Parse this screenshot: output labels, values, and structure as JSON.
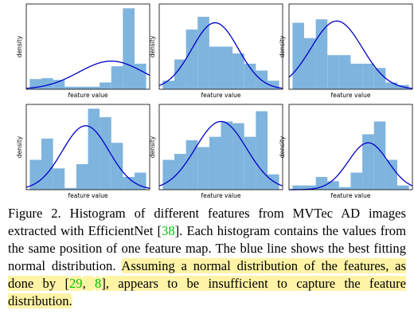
{
  "chart_data": [
    {
      "type": "histogram",
      "xlabel": "feature value",
      "ylabel": "density",
      "bins": [
        0,
        1,
        2,
        3,
        4,
        5,
        6,
        7,
        8,
        9,
        10
      ],
      "counts": [
        0.12,
        0.13,
        0.11,
        0.03,
        0.03,
        0.03,
        0.08,
        0.27,
        0.95,
        0.3
      ],
      "xlim": [
        -0.3,
        10.3
      ],
      "ylim": [
        0,
        1
      ],
      "color": "#7fb4de",
      "fit": {
        "mean": 7,
        "std": 2.8,
        "peak": 0.33,
        "color": "#0000c8"
      }
    },
    {
      "type": "histogram",
      "xlabel": "feature value",
      "ylabel": "density",
      "bins": [
        0,
        1,
        2,
        3,
        4,
        5,
        6,
        7,
        8,
        9,
        10
      ],
      "counts": [
        0.1,
        0.35,
        0.7,
        0.85,
        0.5,
        0.5,
        0.42,
        0.3,
        0.22,
        0.1
      ],
      "xlim": [
        -0.3,
        10.3
      ],
      "ylim": [
        0,
        1
      ],
      "color": "#7fb4de",
      "fit": {
        "mean": 4.5,
        "std": 2,
        "peak": 0.78,
        "color": "#0000c8"
      }
    },
    {
      "type": "histogram",
      "xlabel": "feature value",
      "ylabel": "density",
      "bins": [
        0,
        1,
        2,
        3,
        4,
        5,
        6,
        7,
        8,
        9,
        10
      ],
      "counts": [
        0.78,
        0.6,
        0.82,
        0.4,
        0.4,
        0.3,
        0.3,
        0.25,
        0.08,
        0.05
      ],
      "xlim": [
        -0.3,
        10.3
      ],
      "ylim": [
        0,
        1
      ],
      "color": "#7fb4de",
      "fit": {
        "mean": 3.8,
        "std": 2.2,
        "peak": 0.8,
        "color": "#0000c8"
      }
    },
    {
      "type": "histogram",
      "xlabel": "feature value",
      "ylabel": "density",
      "bins": [
        0,
        1,
        2,
        3,
        4,
        5,
        6,
        7,
        8,
        9,
        10
      ],
      "counts": [
        0.35,
        0.6,
        0.25,
        0.02,
        0.3,
        0.95,
        0.85,
        0.55,
        0.15,
        0.2
      ],
      "xlim": [
        -0.3,
        10.3
      ],
      "ylim": [
        0,
        1
      ],
      "color": "#7fb4de",
      "fit": {
        "mean": 4.8,
        "std": 2,
        "peak": 0.75,
        "color": "#0000c8"
      }
    },
    {
      "type": "histogram",
      "xlabel": "feature value",
      "ylabel": "density",
      "bins": [
        0,
        1,
        2,
        3,
        4,
        5,
        6,
        7,
        8,
        9,
        10
      ],
      "counts": [
        0.35,
        0.42,
        0.58,
        0.5,
        0.62,
        0.8,
        0.78,
        0.62,
        0.92,
        0.18
      ],
      "xlim": [
        -0.3,
        10.3
      ],
      "ylim": [
        0,
        1
      ],
      "color": "#7fb4de",
      "fit": {
        "mean": 5,
        "std": 2.2,
        "peak": 0.8,
        "color": "#0000c8"
      }
    },
    {
      "type": "histogram",
      "xlabel": "feature value",
      "ylabel": "density",
      "bins": [
        0,
        1,
        2,
        3,
        4,
        5,
        6,
        7,
        8,
        9,
        10
      ],
      "counts": [
        0.05,
        0.05,
        0.15,
        0.1,
        0.03,
        0.2,
        0.65,
        0.8,
        0.35,
        0.05
      ],
      "xlim": [
        -0.3,
        10.3
      ],
      "ylim": [
        0,
        1
      ],
      "color": "#7fb4de",
      "fit": {
        "mean": 6.5,
        "std": 1.7,
        "peak": 0.55,
        "color": "#0000c8"
      }
    }
  ],
  "caption": [
    {
      "text": "Figure 2. Histogram of different features from MVTec AD images extracted with EfficientNet ["
    },
    {
      "text": "38",
      "cite": true
    },
    {
      "text": "]. Each histogram contains the values from the same position of one feature map. The blue line shows the best fitting normal distribution. "
    },
    {
      "text": "Assuming a normal distribution of the features, as done by [",
      "highlight": true
    },
    {
      "text": "29",
      "cite": true,
      "highlight": true
    },
    {
      "text": ", ",
      "highlight": true
    },
    {
      "text": "8",
      "cite": true,
      "highlight": true
    },
    {
      "text": "], appears to be insufficient to capture the feature distribution.",
      "highlight": true
    }
  ]
}
